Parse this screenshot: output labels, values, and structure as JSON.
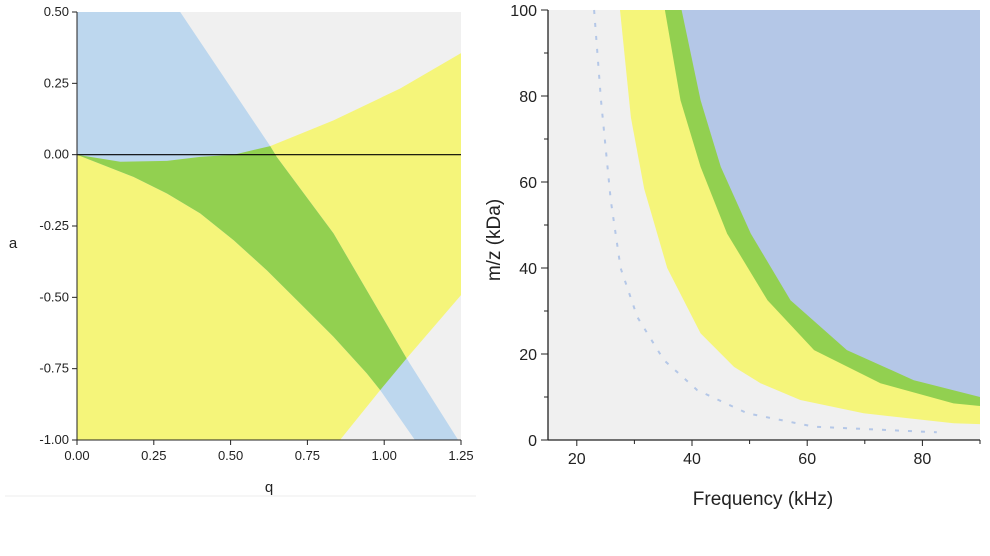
{
  "chart_data": [
    {
      "type": "area",
      "xlabel": "q",
      "ylabel": "a",
      "xlim": [
        0,
        1.25
      ],
      "ylim": [
        -1.0,
        0.5
      ],
      "xticks": [
        "0.00",
        "0.25",
        "0.50",
        "0.75",
        "1.00",
        "1.25"
      ],
      "yticks": [
        "-1.00",
        "-0.75",
        "-0.50",
        "-0.25",
        "0.00",
        "0.25",
        "0.50"
      ],
      "grid": false,
      "reference_line_a": 0,
      "colors": {
        "background": "#f0f0f0",
        "yellow": "#f5f57a",
        "blue": "#bdd7ee",
        "green": "#92d050",
        "line": "#000000"
      },
      "boundaries": {
        "yellow_upper": [
          [
            0,
            0
          ],
          [
            0.141,
            -0.025
          ],
          [
            0.293,
            -0.022
          ],
          [
            0.401,
            -0.008
          ],
          [
            0.51,
            0.0
          ],
          [
            0.629,
            0.03
          ],
          [
            0.835,
            0.12
          ],
          [
            1.052,
            0.232
          ],
          [
            1.25,
            0.356
          ]
        ],
        "yellow_lower_right": [
          [
            1.25,
            -0.492
          ],
          [
            1.073,
            -0.714
          ],
          [
            0.987,
            -0.825
          ],
          [
            0.856,
            -1.0
          ]
        ],
        "blue_right": [
          [
            0.336,
            0.5
          ],
          [
            0.629,
            0.03
          ],
          [
            0.65,
            -0.008
          ],
          [
            0.835,
            -0.276
          ],
          [
            1.073,
            -0.714
          ],
          [
            1.241,
            -1.0
          ]
        ],
        "blue_lower_left": [
          [
            0,
            0
          ],
          [
            0.184,
            -0.078
          ],
          [
            0.293,
            -0.136
          ],
          [
            0.401,
            -0.206
          ],
          [
            0.51,
            -0.3
          ],
          [
            0.618,
            -0.405
          ],
          [
            0.726,
            -0.521
          ],
          [
            0.835,
            -0.638
          ],
          [
            0.943,
            -0.766
          ],
          [
            0.987,
            -0.825
          ],
          [
            1.1,
            -1.0
          ]
        ]
      }
    },
    {
      "type": "area",
      "xlabel": "Frequency (kHz)",
      "ylabel": "m/z (kDa)",
      "xlim": [
        15,
        90
      ],
      "ylim": [
        0,
        100
      ],
      "xticks": [
        "20",
        "40",
        "60",
        "80"
      ],
      "yticks": [
        "0",
        "20",
        "40",
        "60",
        "80",
        "100"
      ],
      "grid": false,
      "colors": {
        "background": "#f0f0f0",
        "yellow": "#f5f57a",
        "green": "#92d050",
        "blue": "#b4c7e7",
        "dashed": "#b4c7e7"
      },
      "boundaries": {
        "grey_yellow": [
          [
            27.5,
            100
          ],
          [
            29.4,
            75
          ],
          [
            31.7,
            58.4
          ],
          [
            35.7,
            40
          ],
          [
            41.5,
            24.8
          ],
          [
            47.3,
            17
          ],
          [
            51.9,
            13.2
          ],
          [
            58.8,
            9.3
          ],
          [
            69.8,
            6.2
          ],
          [
            85.4,
            3.9
          ],
          [
            90,
            3.7
          ]
        ],
        "yellow_green": [
          [
            35.3,
            100
          ],
          [
            38.0,
            79
          ],
          [
            41.5,
            63.5
          ],
          [
            46.1,
            48
          ],
          [
            53.1,
            32.5
          ],
          [
            61.2,
            20.9
          ],
          [
            72.7,
            13.2
          ],
          [
            85.4,
            8.5
          ],
          [
            90,
            7.9
          ]
        ],
        "green_blue": [
          [
            38.2,
            100
          ],
          [
            41.5,
            79
          ],
          [
            45.0,
            63.5
          ],
          [
            50.2,
            48
          ],
          [
            57.1,
            32.5
          ],
          [
            66.9,
            20.9
          ],
          [
            78.5,
            13.9
          ],
          [
            90,
            10
          ]
        ],
        "dashed_curve": [
          [
            23,
            100
          ],
          [
            24.2,
            79
          ],
          [
            25.9,
            55.7
          ],
          [
            27.6,
            40
          ],
          [
            30.5,
            28.6
          ],
          [
            35.1,
            18.6
          ],
          [
            40.9,
            11.6
          ],
          [
            49.6,
            6.2
          ],
          [
            61.2,
            3.1
          ],
          [
            82.5,
            1.8
          ]
        ]
      }
    }
  ]
}
